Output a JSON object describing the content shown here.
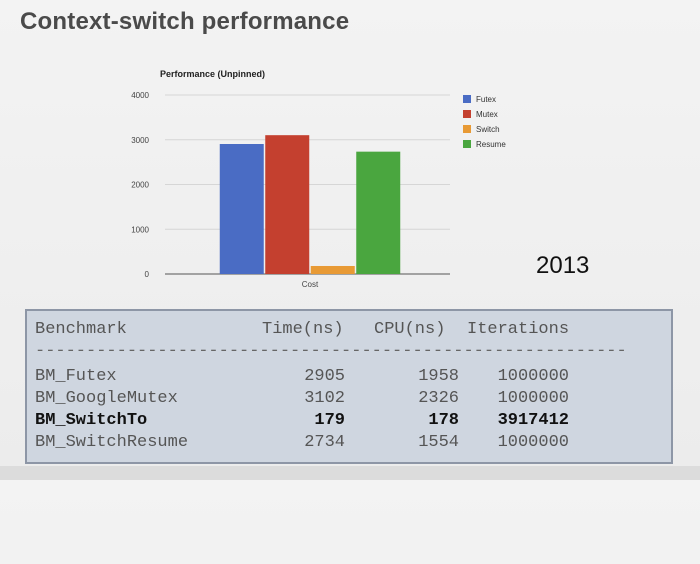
{
  "slide": {
    "title": "Context-switch performance",
    "year": "2013"
  },
  "colors": {
    "futex": "#4a6cc4",
    "mutex": "#c4402f",
    "switch": "#e89a35",
    "resume": "#4aa63f"
  },
  "chart_data": {
    "type": "bar",
    "title": "Performance (Unpinned)",
    "categories": [
      "Cost"
    ],
    "series": [
      {
        "name": "Futex",
        "values": [
          2905
        ]
      },
      {
        "name": "Mutex",
        "values": [
          3102
        ]
      },
      {
        "name": "Switch",
        "values": [
          179
        ]
      },
      {
        "name": "Resume",
        "values": [
          2734
        ]
      }
    ],
    "yticks": [
      "0",
      "1000",
      "2000",
      "3000",
      "4000"
    ],
    "ylim": [
      0,
      4000
    ],
    "xlabel": "",
    "ylabel": "",
    "legend": "right",
    "grid": true
  },
  "table": {
    "headers": {
      "name": "Benchmark",
      "time": "Time(ns)",
      "cpu": "CPU(ns)",
      "iterations": "Iterations"
    },
    "separator": "----------------------------------------------------------",
    "rows": [
      {
        "name": "BM_Futex",
        "time": "2905",
        "cpu": "1958",
        "iterations": "1000000"
      },
      {
        "name": "BM_GoogleMutex",
        "time": "3102",
        "cpu": "2326",
        "iterations": "1000000"
      },
      {
        "name": "BM_SwitchTo",
        "time": "179",
        "cpu": "178",
        "iterations": "3917412"
      },
      {
        "name": "BM_SwitchResume",
        "time": "2734",
        "cpu": "1554",
        "iterations": "1000000"
      }
    ]
  }
}
